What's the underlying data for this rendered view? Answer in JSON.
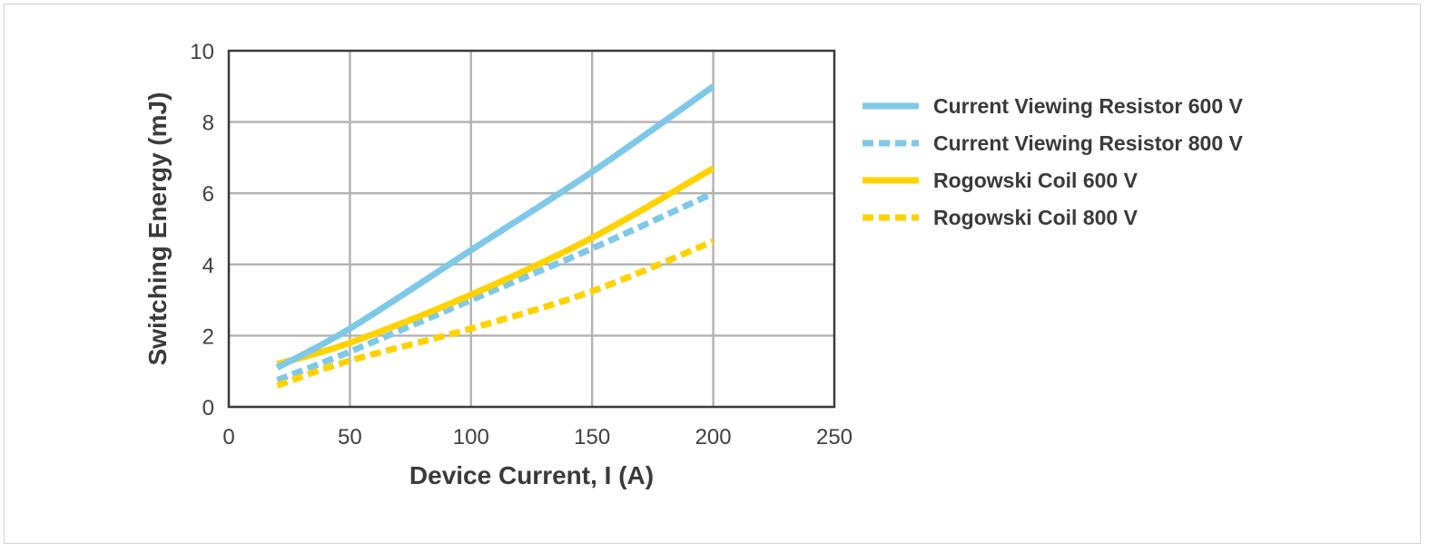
{
  "chart_data": {
    "type": "line",
    "xlabel": "Device Current, I (A)",
    "ylabel": "Switching Energy (mJ)",
    "xlim": [
      0,
      250
    ],
    "ylim": [
      0,
      10
    ],
    "xticks": [
      "0",
      "50",
      "100",
      "150",
      "200",
      "250"
    ],
    "yticks": [
      "0",
      "2",
      "4",
      "6",
      "8",
      "10"
    ],
    "grid": true,
    "legend_position": "right",
    "series": [
      {
        "name": "Current Viewing Resistor 600 V",
        "color": "#7ec8e8",
        "style": "solid",
        "x": [
          20,
          50,
          100,
          150,
          200
        ],
        "y": [
          1.1,
          2.2,
          4.4,
          6.6,
          9.0
        ]
      },
      {
        "name": "Current Viewing Resistor 800 V",
        "color": "#7ec8e8",
        "style": "dashed",
        "x": [
          20,
          50,
          100,
          150,
          200
        ],
        "y": [
          0.75,
          1.55,
          3.0,
          4.45,
          6.0
        ]
      },
      {
        "name": "Rogowski Coil 600 V",
        "color": "#ffd200",
        "style": "solid",
        "x": [
          20,
          50,
          100,
          150,
          200
        ],
        "y": [
          1.2,
          1.8,
          3.15,
          4.75,
          6.7
        ]
      },
      {
        "name": "Rogowski Coil 800 V",
        "color": "#ffd200",
        "style": "dashed",
        "x": [
          20,
          50,
          100,
          150,
          200
        ],
        "y": [
          0.6,
          1.3,
          2.2,
          3.25,
          4.65
        ]
      }
    ]
  }
}
